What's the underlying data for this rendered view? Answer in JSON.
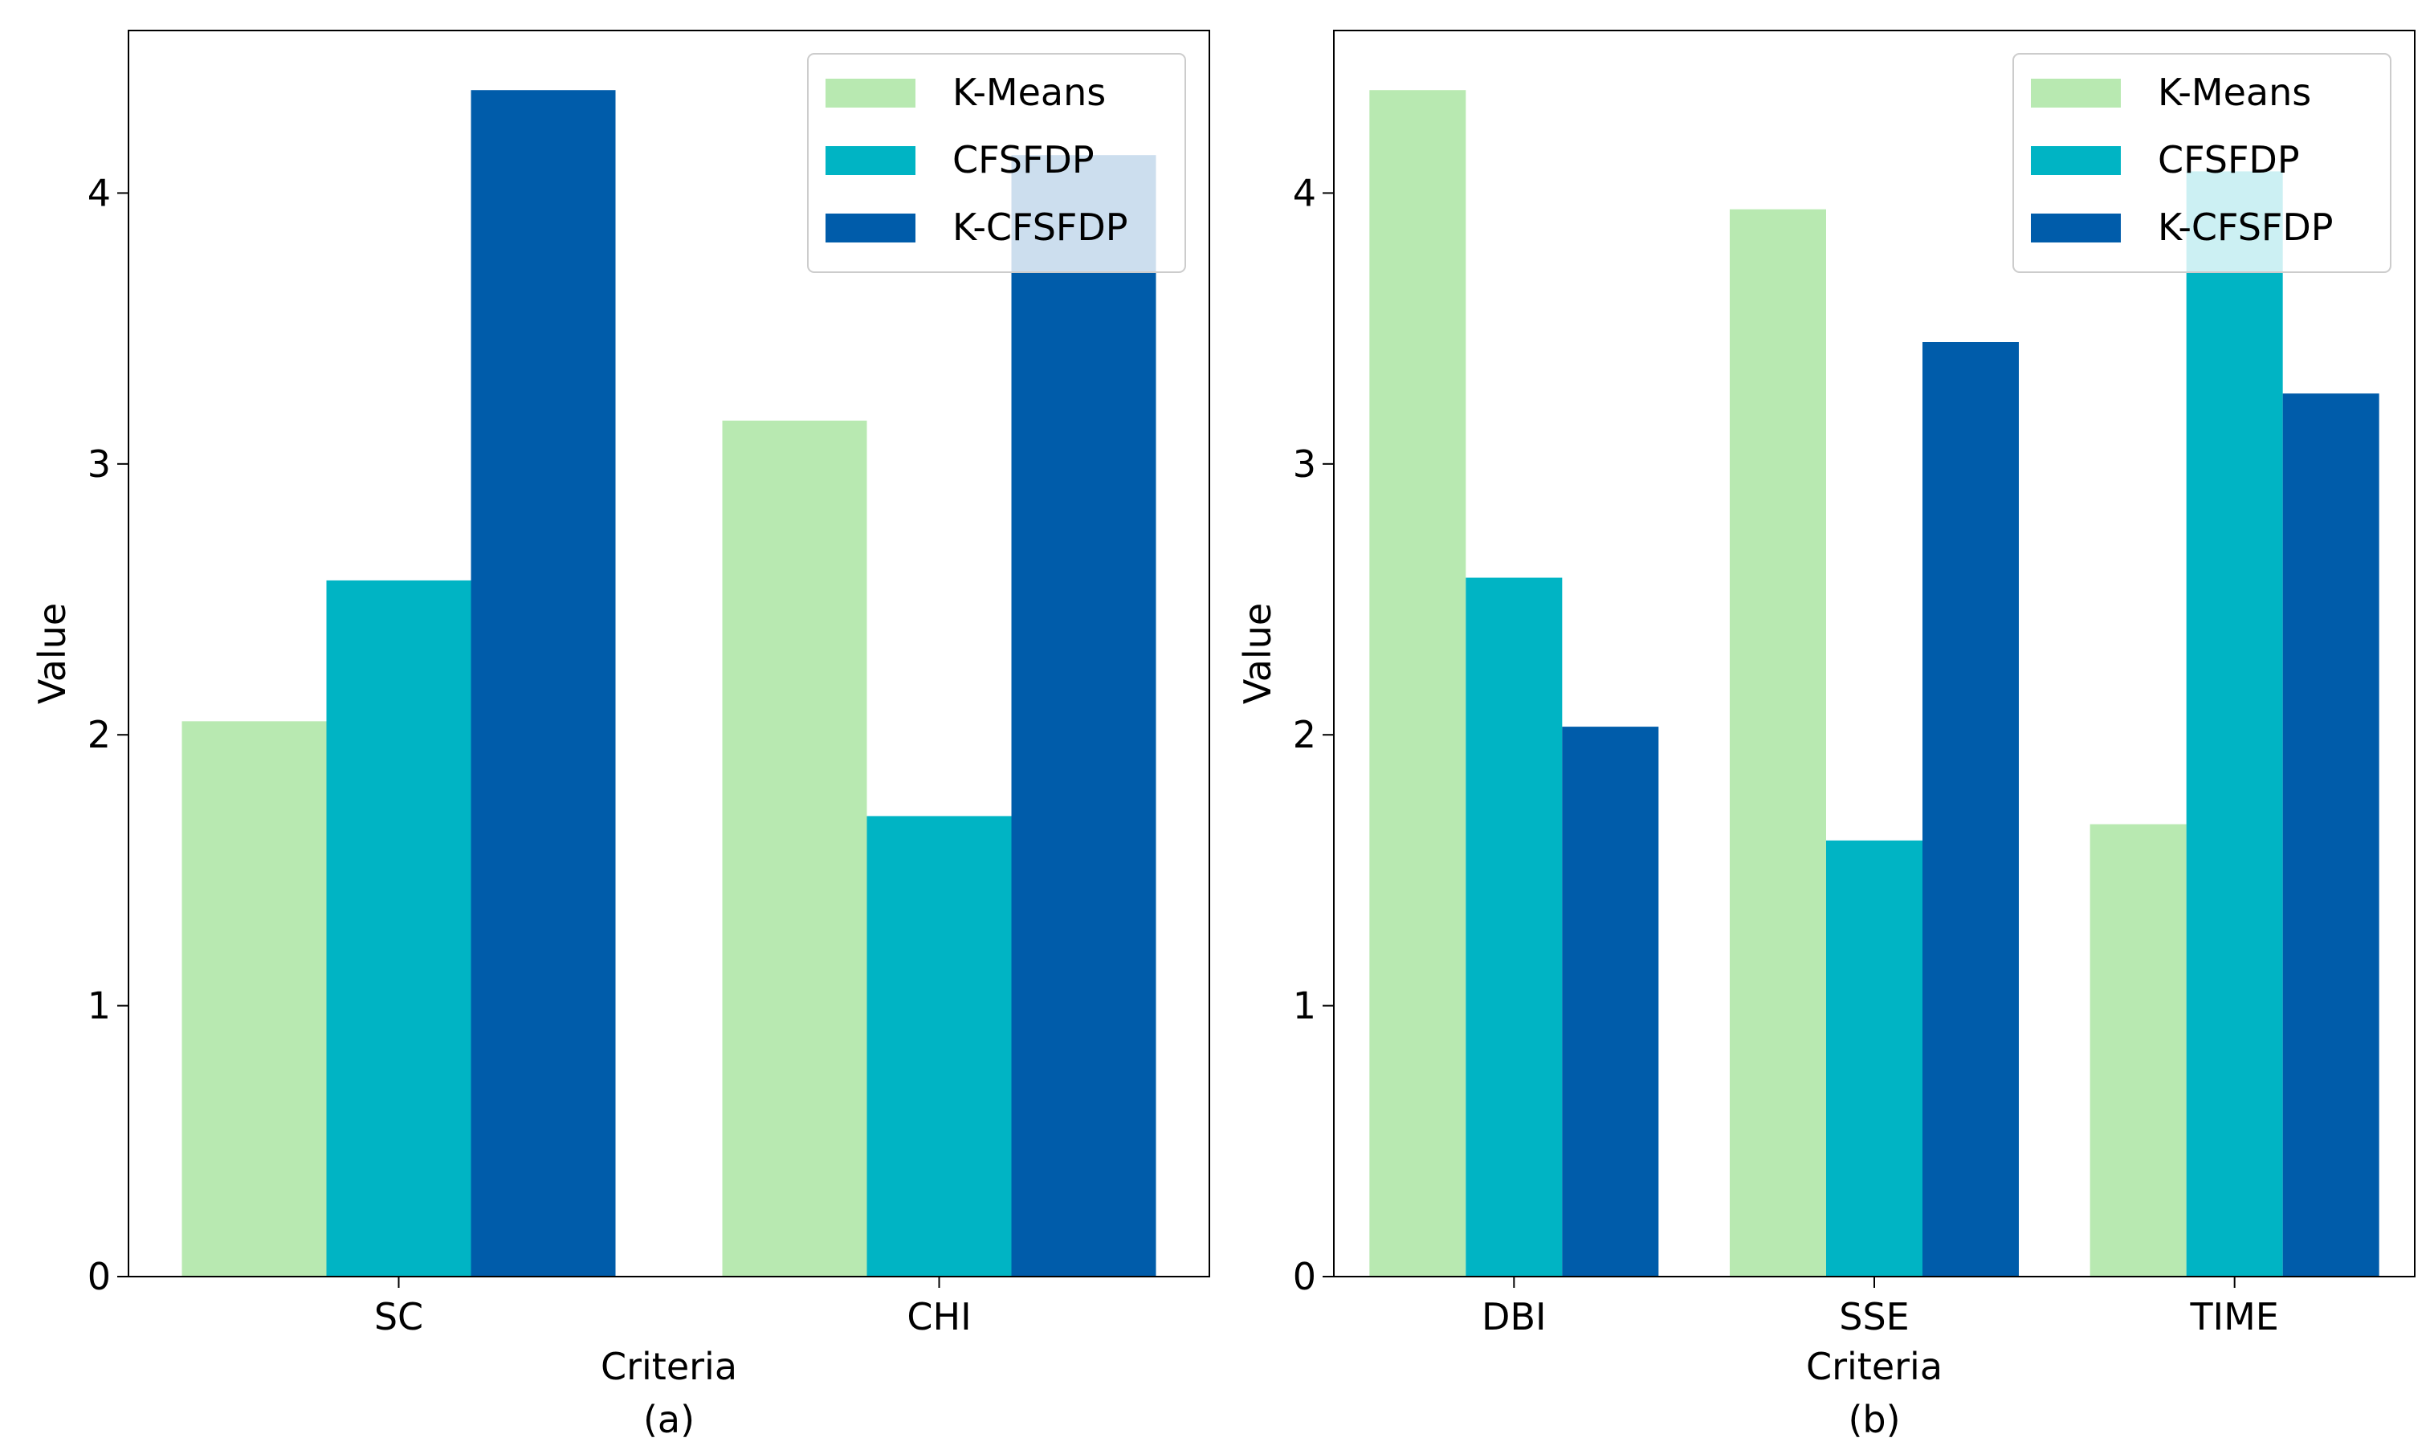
{
  "chart_data": [
    {
      "type": "bar",
      "panel_label": "(a)",
      "xlabel": "Criteria",
      "ylabel": "Value",
      "ylim": [
        0,
        4.6
      ],
      "yticks": [
        0,
        1,
        2,
        3,
        4
      ],
      "categories": [
        "SC",
        "CHI"
      ],
      "series": [
        {
          "name": "K-Means",
          "color": "#b8e9b1",
          "values": [
            2.05,
            3.16
          ]
        },
        {
          "name": "CFSFDP",
          "color": "#00b4c4",
          "values": [
            2.57,
            1.7
          ]
        },
        {
          "name": "K-CFSFDP",
          "color": "#005caa",
          "values": [
            4.38,
            4.14
          ]
        }
      ],
      "legend": "top-right"
    },
    {
      "type": "bar",
      "panel_label": "(b)",
      "xlabel": "Criteria",
      "ylabel": "Value",
      "ylim": [
        0,
        4.6
      ],
      "yticks": [
        0,
        1,
        2,
        3,
        4
      ],
      "categories": [
        "DBI",
        "SSE",
        "TIME"
      ],
      "series": [
        {
          "name": "K-Means",
          "color": "#b8e9b1",
          "values": [
            4.38,
            3.94,
            1.67
          ]
        },
        {
          "name": "CFSFDP",
          "color": "#00b4c4",
          "values": [
            2.58,
            1.61,
            4.08
          ]
        },
        {
          "name": "K-CFSFDP",
          "color": "#005caa",
          "values": [
            2.03,
            3.45,
            3.26
          ]
        }
      ],
      "legend": "top-right"
    }
  ]
}
